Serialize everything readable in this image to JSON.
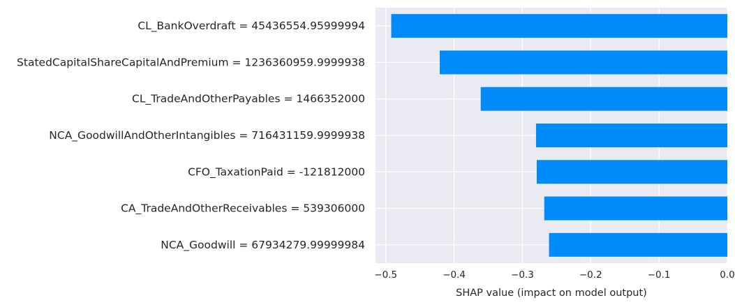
{
  "chart_data": {
    "type": "bar",
    "orientation": "horizontal",
    "categories": [
      "CL_BankOverdraft = 45436554.95999994",
      "StatedCapitalShareCapitalAndPremium = 1236360959.9999938",
      "CL_TradeAndOtherPayables = 1466352000",
      "NCA_GoodwillAndOtherIntangibles = 716431159.9999938",
      "CFO_TaxationPaid = -121812000",
      "CA_TradeAndOtherReceivables = 539306000",
      "NCA_Goodwill = 67934279.99999984"
    ],
    "values": [
      -0.492,
      -0.421,
      -0.361,
      -0.28,
      -0.279,
      -0.268,
      -0.261
    ],
    "xlabel": "SHAP value (impact on model output)",
    "ylabel": "",
    "title": "",
    "xlim": [
      -0.515,
      0.0
    ],
    "xticks": [
      -0.5,
      -0.4,
      -0.3,
      -0.2,
      -0.1,
      0.0
    ],
    "xtick_labels": [
      "−0.5",
      "−0.4",
      "−0.3",
      "−0.2",
      "−0.1",
      "0.0"
    ],
    "grid": true,
    "colors": {
      "bar": "#008bfb",
      "background": "#eaeaf2",
      "grid": "#ffffff",
      "text": "#262626"
    }
  }
}
